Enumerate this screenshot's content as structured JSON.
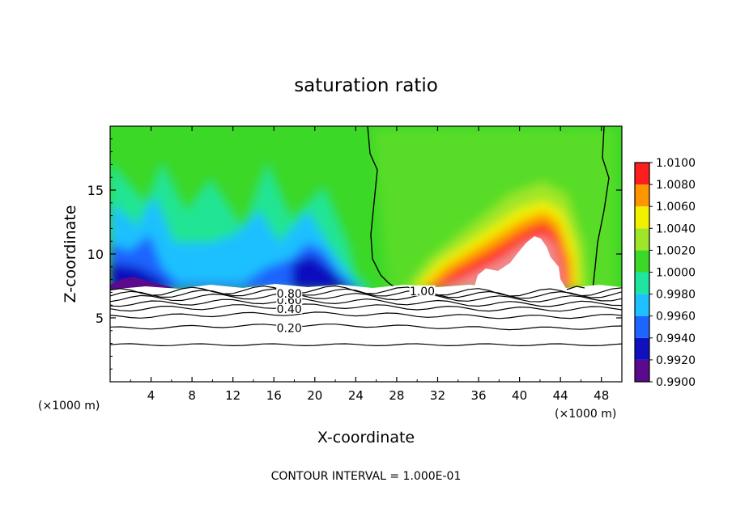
{
  "chart_data": {
    "type": "heatmap",
    "title": "saturation ratio",
    "xlabel": "X-coordinate",
    "ylabel": "Z-coordinate",
    "x_unit_note": "(×1000 m)",
    "x_unit_note_right": "(×1000 m)",
    "xlim": [
      0,
      50
    ],
    "ylim": [
      0,
      20
    ],
    "x_ticks": [
      4,
      8,
      12,
      16,
      20,
      24,
      28,
      32,
      36,
      40,
      44,
      48
    ],
    "y_ticks": [
      5,
      10,
      15
    ],
    "footer": "CONTOUR INTERVAL = 1.000E-01",
    "colorbar": {
      "levels": [
        "0.9900",
        "0.9920",
        "0.9940",
        "0.9960",
        "0.9980",
        "1.0000",
        "1.0020",
        "1.0040",
        "1.0060",
        "1.0080",
        "1.0100"
      ],
      "colors": [
        "#5a0a8a",
        "#1010c0",
        "#1e64ff",
        "#1ec0ff",
        "#1ee6a0",
        "#3cd828",
        "#a0e628",
        "#f0f000",
        "#ff9600",
        "#ff1e1e",
        "#f08c8c"
      ]
    },
    "contour_labels": [
      {
        "text": "0.20",
        "x": 17.5,
        "y": 4.2
      },
      {
        "text": "0.40",
        "x": 17.5,
        "y": 5.7
      },
      {
        "text": "0.60",
        "x": 17.5,
        "y": 6.4
      },
      {
        "text": "0.80",
        "x": 17.5,
        "y": 6.9
      },
      {
        "text": "1.00",
        "x": 30.5,
        "y": 7.1
      }
    ],
    "contour_levels_below_cloud": [
      2.9,
      4.3,
      5.2,
      5.8,
      6.2,
      6.6,
      6.9,
      7.1
    ],
    "cloud_base": 7.3
  }
}
